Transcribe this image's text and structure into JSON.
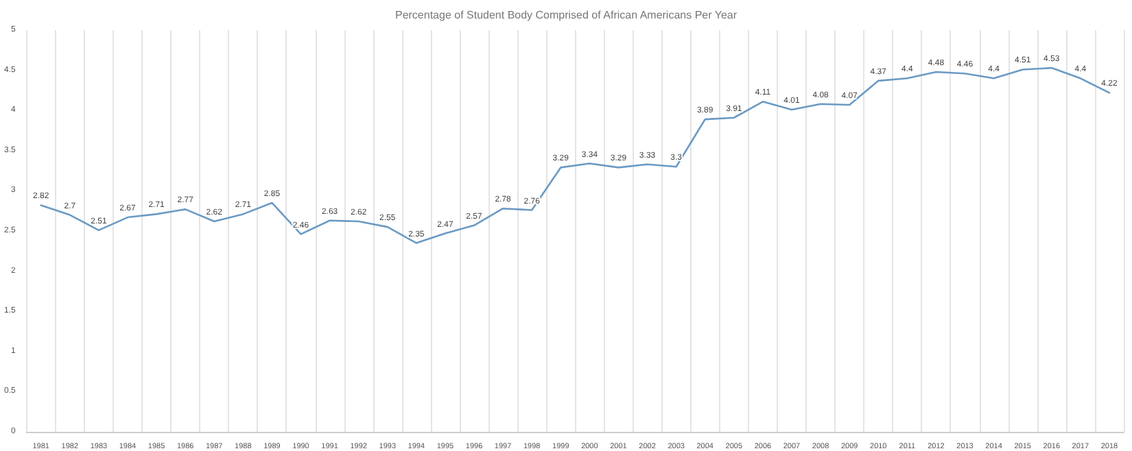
{
  "chart_data": {
    "type": "line",
    "title": "Percentage of Student Body Comprised of African Americans Per Year",
    "categories": [
      "1981",
      "1982",
      "1983",
      "1984",
      "1985",
      "1986",
      "1987",
      "1988",
      "1989",
      "1990",
      "1991",
      "1992",
      "1993",
      "1994",
      "1995",
      "1996",
      "1997",
      "1998",
      "1999",
      "2000",
      "2001",
      "2002",
      "2003",
      "2004",
      "2005",
      "2006",
      "2007",
      "2008",
      "2009",
      "2010",
      "2011",
      "2012",
      "2013",
      "2014",
      "2015",
      "2016",
      "2017",
      "2018"
    ],
    "values": [
      2.82,
      2.7,
      2.51,
      2.67,
      2.71,
      2.77,
      2.62,
      2.71,
      2.85,
      2.46,
      2.63,
      2.62,
      2.55,
      2.35,
      2.47,
      2.57,
      2.78,
      2.76,
      3.29,
      3.34,
      3.29,
      3.33,
      3.3,
      3.89,
      3.91,
      4.11,
      4.01,
      4.08,
      4.07,
      4.37,
      4.4,
      4.48,
      4.46,
      4.4,
      4.51,
      4.53,
      4.4,
      4.22
    ],
    "color": "#6a9ac4",
    "ylim": [
      0,
      5
    ],
    "yticks": [
      0,
      0.5,
      1,
      1.5,
      2,
      2.5,
      3,
      3.5,
      4,
      4.5,
      5
    ],
    "grid": "x",
    "marker": "none",
    "line_style": "solid",
    "data_labels": true
  }
}
